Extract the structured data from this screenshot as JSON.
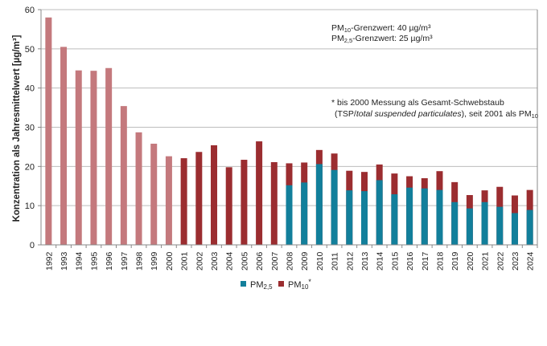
{
  "chart_data": {
    "type": "bar",
    "stacked": true,
    "title": "",
    "xlabel": "",
    "ylabel": "Konzentration als Jahresmittelwert [µg/m³]",
    "ylim": [
      0,
      60
    ],
    "yticks": [
      0,
      10,
      20,
      30,
      40,
      50,
      60
    ],
    "grid": true,
    "legend_placement": "bottom",
    "categories": [
      "1992",
      "1993",
      "1994",
      "1995",
      "1996",
      "1997",
      "1998",
      "1999",
      "2000",
      "2001",
      "2002",
      "2003",
      "2004",
      "2005",
      "2006",
      "2007",
      "2008",
      "2009",
      "2010",
      "2011",
      "2012",
      "2013",
      "2014",
      "2015",
      "2016",
      "2017",
      "2018",
      "2019",
      "2020",
      "2021",
      "2022",
      "2023",
      "2024"
    ],
    "series": [
      {
        "name": "PM2,5",
        "legend_main": "PM",
        "legend_sub": "2,5",
        "legend_suffix": "",
        "color": "#127f9b",
        "values": [
          null,
          null,
          null,
          null,
          null,
          null,
          null,
          null,
          null,
          null,
          null,
          null,
          null,
          null,
          null,
          null,
          15.2,
          15.9,
          20.6,
          19.1,
          13.9,
          13.7,
          16.5,
          12.9,
          14.6,
          14.4,
          14.0,
          10.9,
          9.3,
          10.9,
          9.7,
          8.1,
          8.9
        ]
      },
      {
        "name": "PM10*",
        "legend_main": "PM",
        "legend_sub": "10",
        "legend_suffix": "*",
        "color": "#9b2d30",
        "tsp_color": "#c4797d",
        "values_total": [
          58.0,
          50.5,
          44.5,
          44.4,
          45.1,
          35.4,
          28.7,
          25.8,
          22.6,
          22.1,
          23.7,
          25.4,
          19.8,
          21.7,
          26.4,
          21.1,
          20.8,
          21.0,
          24.2,
          23.3,
          18.9,
          18.6,
          20.5,
          18.2,
          17.5,
          17.0,
          18.8,
          16.0,
          12.7,
          13.9,
          14.8,
          12.6,
          14.0
        ]
      }
    ],
    "annotations": {
      "limit_pm10": {
        "main": "PM",
        "sub": "10",
        "rest": "-Grenzwert: 40 µg/m³"
      },
      "limit_pm25": {
        "main": "PM",
        "sub": "2,5",
        "rest": "-Grenzwert: 25 µg/m³"
      },
      "note_line1": "* bis 2000 Messung als Gesamt-Schwebstaub",
      "note_line2_a": "(TSP/",
      "note_line2_italic": "total suspended particulates",
      "note_line2_b": "), seit 2001 als PM",
      "note_line2_sub": "10"
    }
  }
}
